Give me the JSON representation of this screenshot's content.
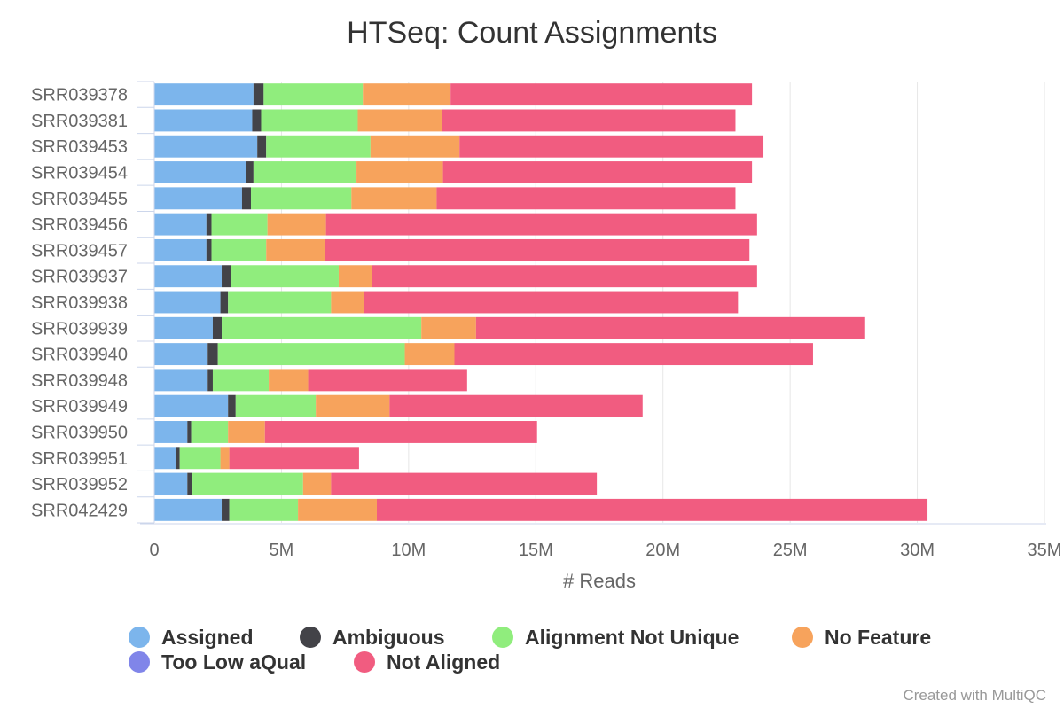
{
  "chart_data": {
    "type": "bar",
    "orientation": "horizontal",
    "stacked": true,
    "title": "HTSeq: Count Assignments",
    "xlabel": "# Reads",
    "ylabel": "",
    "xlim": [
      0,
      35000000
    ],
    "x_ticks": [
      "0",
      "5M",
      "10M",
      "15M",
      "20M",
      "25M",
      "30M",
      "35M"
    ],
    "grid": true,
    "legend_position": "bottom",
    "categories": [
      "SRR039378",
      "SRR039381",
      "SRR039453",
      "SRR039454",
      "SRR039455",
      "SRR039456",
      "SRR039457",
      "SRR039937",
      "SRR039938",
      "SRR039939",
      "SRR039940",
      "SRR039948",
      "SRR039949",
      "SRR039950",
      "SRR039951",
      "SRR039952",
      "SRR042429"
    ],
    "series": [
      {
        "name": "Assigned",
        "color": "#7cb5ec",
        "values": [
          3900000,
          3850000,
          4050000,
          3600000,
          3450000,
          2050000,
          2050000,
          2650000,
          2600000,
          2300000,
          2100000,
          2100000,
          2900000,
          1300000,
          850000,
          1300000,
          2650000
        ]
      },
      {
        "name": "Ambiguous",
        "color": "#434348",
        "values": [
          400000,
          350000,
          350000,
          300000,
          350000,
          200000,
          200000,
          350000,
          300000,
          350000,
          400000,
          200000,
          300000,
          150000,
          150000,
          200000,
          300000
        ]
      },
      {
        "name": "Alignment Not Unique",
        "color": "#90ed7d",
        "values": [
          3900000,
          3800000,
          4100000,
          4050000,
          3950000,
          2200000,
          2150000,
          4250000,
          4050000,
          7850000,
          7350000,
          2200000,
          3150000,
          1450000,
          1600000,
          4350000,
          2700000
        ]
      },
      {
        "name": "No Feature",
        "color": "#f7a35c",
        "values": [
          3450000,
          3300000,
          3500000,
          3400000,
          3350000,
          2300000,
          2300000,
          1300000,
          1300000,
          2150000,
          1950000,
          1550000,
          2900000,
          1450000,
          350000,
          1100000,
          3100000
        ]
      },
      {
        "name": "Too Low aQual",
        "color": "#8085e9",
        "values": [
          0,
          0,
          0,
          0,
          0,
          0,
          0,
          0,
          0,
          0,
          0,
          0,
          0,
          0,
          0,
          0,
          0
        ]
      },
      {
        "name": "Not Aligned",
        "color": "#f15c80",
        "values": [
          11850000,
          11550000,
          11950000,
          12150000,
          11750000,
          16950000,
          16700000,
          15150000,
          14700000,
          15300000,
          14100000,
          6250000,
          9950000,
          10700000,
          5100000,
          10450000,
          21650000
        ]
      }
    ]
  },
  "credit": "Created with MultiQC"
}
